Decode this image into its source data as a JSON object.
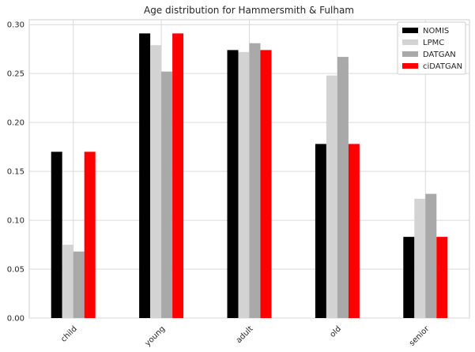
{
  "chart_data": {
    "type": "bar",
    "title": "Age distribution for Hammersmith & Fulham",
    "xlabel": "",
    "ylabel": "",
    "categories": [
      "child",
      "young",
      "adult",
      "old",
      "senior"
    ],
    "series": [
      {
        "name": "NOMIS",
        "color": "#000000",
        "values": [
          0.17,
          0.291,
          0.274,
          0.178,
          0.083
        ]
      },
      {
        "name": "LPMC",
        "color": "#d3d3d3",
        "values": [
          0.075,
          0.279,
          0.272,
          0.248,
          0.122
        ]
      },
      {
        "name": "DATGAN",
        "color": "#a9a9a9",
        "values": [
          0.068,
          0.252,
          0.281,
          0.267,
          0.127
        ]
      },
      {
        "name": "ciDATGAN",
        "color": "#ff0000",
        "values": [
          0.17,
          0.291,
          0.274,
          0.178,
          0.083
        ]
      }
    ],
    "ylim": [
      0,
      0.305
    ],
    "yticks": [
      "0.00",
      "0.05",
      "0.10",
      "0.15",
      "0.20",
      "0.25",
      "0.30"
    ],
    "grid": true,
    "legend_position": "top-right"
  }
}
